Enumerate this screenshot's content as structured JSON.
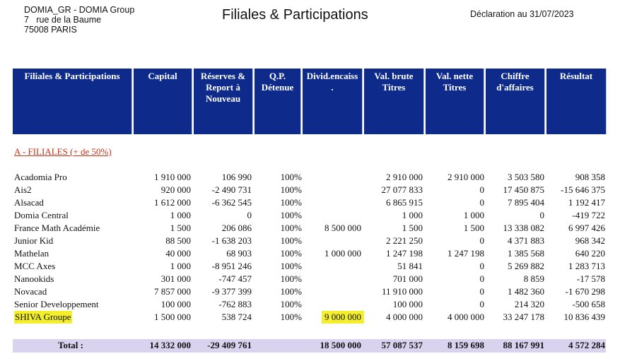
{
  "company": {
    "line1": "DOMIA_GR - DOMIA Group",
    "line2": "7   rue de la Baume",
    "line3": "75008 PARIS"
  },
  "title": "Filiales & Participations",
  "declaration": "Déclaration au 31/07/2023",
  "columns": [
    [
      "Filiales & Participations"
    ],
    [
      "Capital"
    ],
    [
      "Réserves &",
      "Report à",
      "Nouveau"
    ],
    [
      "Q.P.",
      "Détenue"
    ],
    [
      "Divid.encaiss",
      "."
    ],
    [
      "Val. brute",
      "Titres"
    ],
    [
      "Val. nette",
      "Titres"
    ],
    [
      "Chiffre",
      "d'affaires"
    ],
    [
      "Résultat"
    ]
  ],
  "section": "A - FILIALES  (+ de 50%)",
  "rows": [
    {
      "name": "Acadomia Pro",
      "capital": "1 910 000",
      "reserves": "106 990",
      "qp": "100%",
      "dividends": "",
      "gross": "2 910 000",
      "net": "2 910 000",
      "revenue": "3 503 580",
      "result": "908 358"
    },
    {
      "name": "Ais2",
      "capital": "920 000",
      "reserves": "-2 490 731",
      "qp": "100%",
      "dividends": "",
      "gross": "27 077 833",
      "net": "0",
      "revenue": "17 450 875",
      "result": "-15 646 375"
    },
    {
      "name": "Alsacad",
      "capital": "1 612 000",
      "reserves": "-6 362 545",
      "qp": "100%",
      "dividends": "",
      "gross": "6 865 915",
      "net": "0",
      "revenue": "7 895 404",
      "result": "1 192 417"
    },
    {
      "name": "Domia Central",
      "capital": "1 000",
      "reserves": "0",
      "qp": "100%",
      "dividends": "",
      "gross": "1 000",
      "net": "1 000",
      "revenue": "0",
      "result": "-419 722"
    },
    {
      "name": "France Math Académie",
      "capital": "1 500",
      "reserves": "206 086",
      "qp": "100%",
      "dividends": "8 500 000",
      "gross": "1 500",
      "net": "1 500",
      "revenue": "13 338 082",
      "result": "6 997 426"
    },
    {
      "name": "Junior Kid",
      "capital": "88 500",
      "reserves": "-1 638 203",
      "qp": "100%",
      "dividends": "",
      "gross": "2 221 250",
      "net": "0",
      "revenue": "4 371 883",
      "result": "968 342"
    },
    {
      "name": "Mathelan",
      "capital": "40 000",
      "reserves": "68 903",
      "qp": "100%",
      "dividends": "1 000 000",
      "gross": "1 247 198",
      "net": "1 247 198",
      "revenue": "1 385 568",
      "result": "640 220"
    },
    {
      "name": "MCC Axes",
      "capital": "1 000",
      "reserves": "-8 951 246",
      "qp": "100%",
      "dividends": "",
      "gross": "51 841",
      "net": "0",
      "revenue": "5 269 882",
      "result": "1 283 713"
    },
    {
      "name": "Nanookids",
      "capital": "301 000",
      "reserves": "-747 457",
      "qp": "100%",
      "dividends": "",
      "gross": "701 000",
      "net": "0",
      "revenue": "8 859",
      "result": "-17 578"
    },
    {
      "name": "Novacad",
      "capital": "7 857 000",
      "reserves": "-9 377 399",
      "qp": "100%",
      "dividends": "",
      "gross": "11 910 000",
      "net": "0",
      "revenue": "1 482 360",
      "result": "-1 670 298"
    },
    {
      "name": "Senior Developpement",
      "capital": "100 000",
      "reserves": "-762 883",
      "qp": "100%",
      "dividends": "",
      "gross": "100 000",
      "net": "0",
      "revenue": "214 320",
      "result": "-500 658"
    },
    {
      "name": "SHIVA Groupe",
      "capital": "1 500 000",
      "reserves": "538 724",
      "qp": "100%",
      "dividends": "9 000 000",
      "gross": "4 000 000",
      "net": "4 000 000",
      "revenue": "33 247 178",
      "result": "10 836 439"
    }
  ],
  "total": {
    "label": "Total :",
    "capital": "14 332 000",
    "reserves": "-29 409 761",
    "dividends": "18 500 000",
    "gross": "57 087 537",
    "net": "8 159 698",
    "revenue": "88 167 991",
    "result": "4 572 284"
  },
  "highlight_color": "#f3ef2c",
  "header_color": "#0e2b8c",
  "total_bar_color": "#d9d3ef"
}
